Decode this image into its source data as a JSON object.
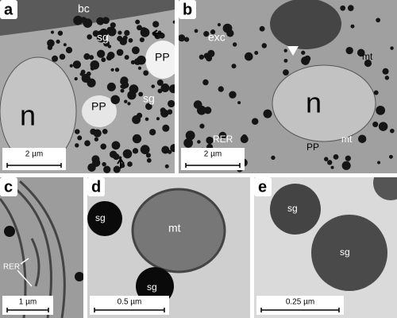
{
  "panels": [
    {
      "letter": "a",
      "labels": [
        "bc",
        "sg",
        "PP",
        "PP",
        "sg",
        "n"
      ],
      "scale": "2 µm"
    },
    {
      "letter": "b",
      "labels": [
        "exc",
        "mt",
        "n",
        "RER",
        "PP",
        "mt"
      ],
      "scale": "2 µm"
    },
    {
      "letter": "c",
      "labels": [
        "RER"
      ],
      "scale": "1 µm"
    },
    {
      "letter": "d",
      "labels": [
        "sg",
        "mt",
        "sg"
      ],
      "scale": "0.5 µm"
    },
    {
      "letter": "e",
      "labels": [
        "sg",
        "sg"
      ],
      "scale": "0.25 µm"
    }
  ]
}
